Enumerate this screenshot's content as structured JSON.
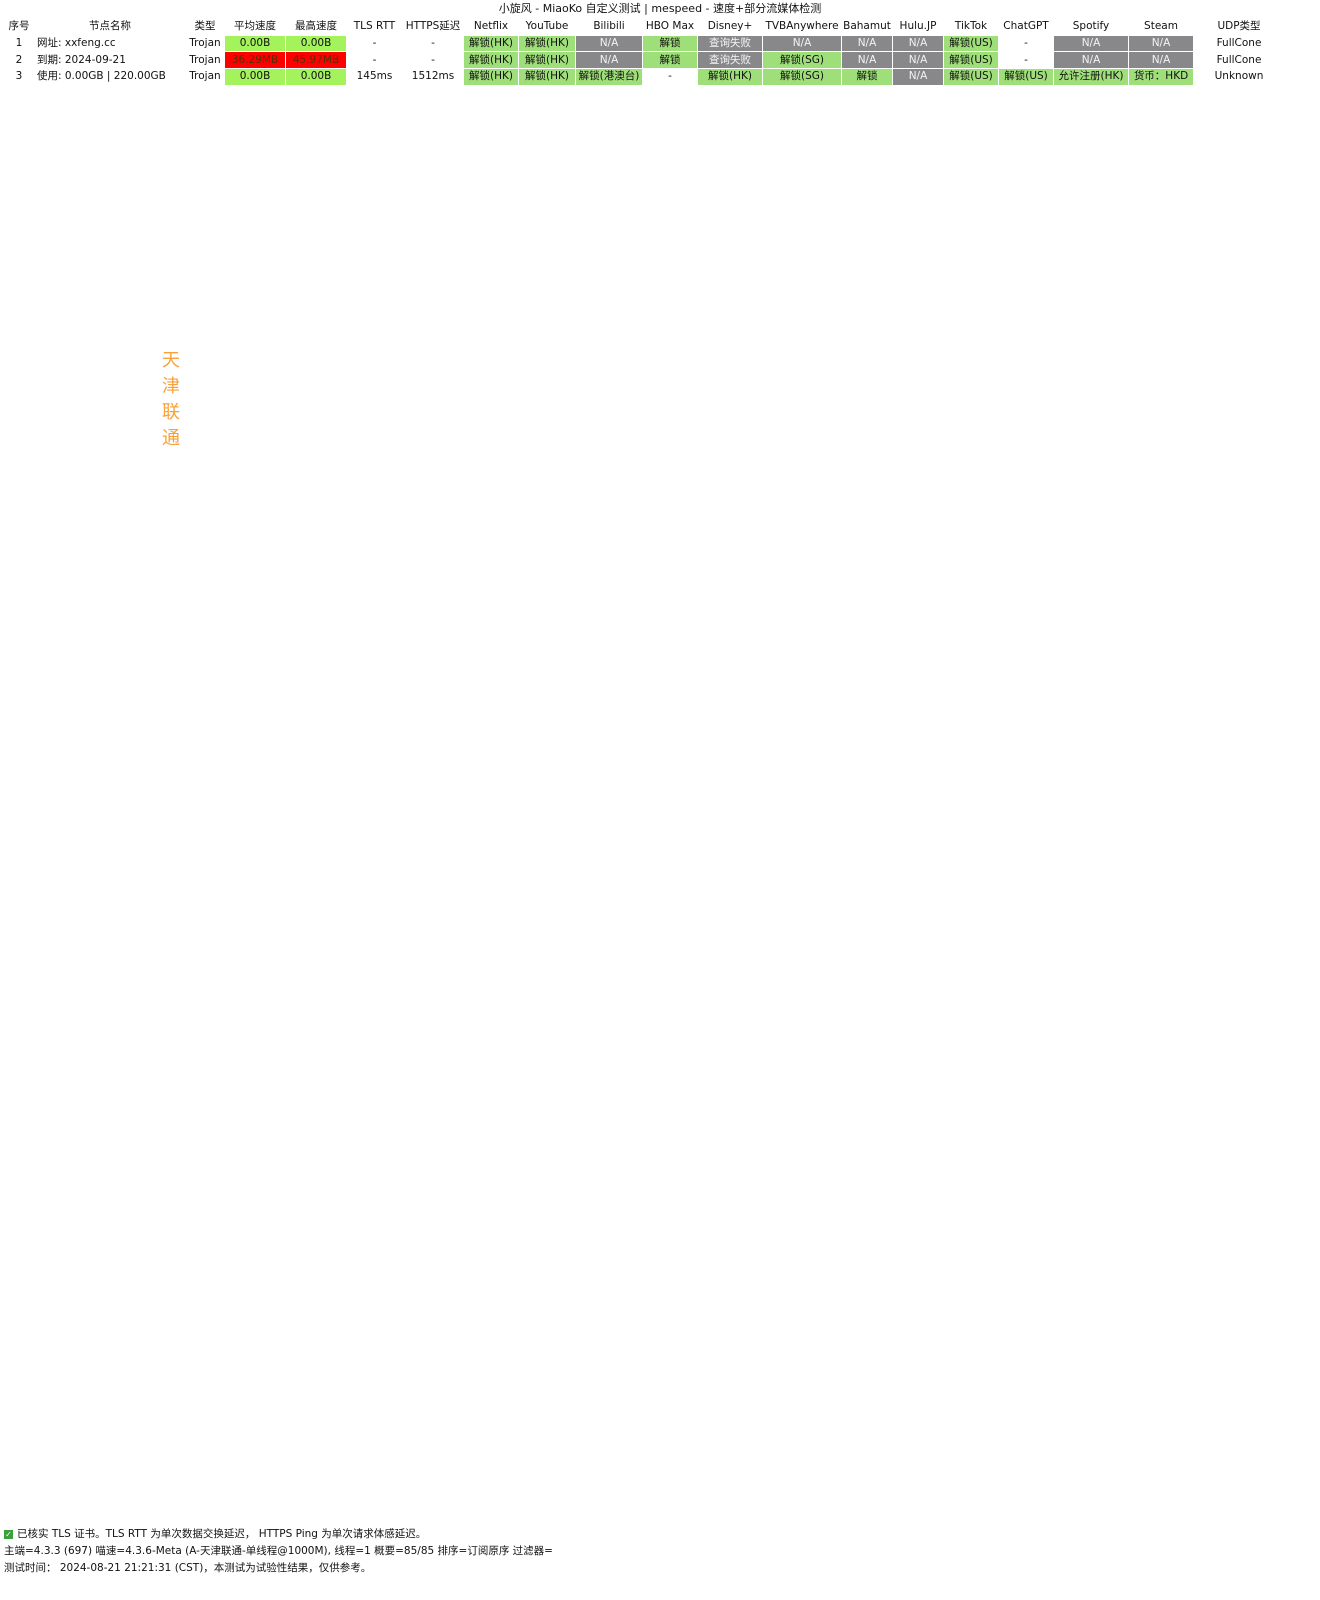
{
  "title": "小旋风 - MiaoKo 自定义测试 | mespeed - 速度+部分流媒体检测",
  "headers": [
    "序号",
    "节点名称",
    "类型",
    "平均速度",
    "最高速度",
    "TLS RTT",
    "HTTPS延迟",
    "Netflix",
    "YouTube",
    "Bilibili",
    "HBO Max",
    "Disney+",
    "TVBAnywhere",
    "Bahamut",
    "Hulu.JP",
    "TikTok",
    "ChatGPT",
    "Spotify",
    "Steam",
    "UDP类型"
  ],
  "watermark": "天津联通",
  "rows": [
    {
      "i": "1",
      "n": "网址: xxfeng.cc",
      "t": "Trojan",
      "a": [
        "0.00B",
        "lg"
      ],
      "m": [
        "0.00B",
        "lg"
      ],
      "tls": "-",
      "https": "-",
      "nf": [
        "解锁(HK)",
        "g"
      ],
      "yt": [
        "解锁(HK)",
        "g"
      ],
      "bb": [
        "N/A",
        "x"
      ],
      "hbo": [
        "解锁",
        "g"
      ],
      "dis": [
        "查询失败",
        "x"
      ],
      "tvb": [
        "N/A",
        "x"
      ],
      "bah": [
        "N/A",
        "x"
      ],
      "hulu": [
        "N/A",
        "x"
      ],
      "tt": [
        "解锁(US)",
        "g"
      ],
      "gpt": [
        "-",
        "w"
      ],
      "sp": [
        "N/A",
        "x"
      ],
      "st": [
        "N/A",
        "x"
      ],
      "udp": "FullCone"
    },
    {
      "i": "2",
      "n": "到期: 2024-09-21",
      "t": "Trojan",
      "a": [
        "36.29MB",
        "sr"
      ],
      "m": [
        "45.97MB",
        "sr"
      ],
      "tls": "-",
      "https": "-",
      "nf": [
        "解锁(HK)",
        "g"
      ],
      "yt": [
        "解锁(HK)",
        "g"
      ],
      "bb": [
        "N/A",
        "x"
      ],
      "hbo": [
        "解锁",
        "g"
      ],
      "dis": [
        "查询失败",
        "x"
      ],
      "tvb": [
        "解锁(SG)",
        "g"
      ],
      "bah": [
        "N/A",
        "x"
      ],
      "hulu": [
        "N/A",
        "x"
      ],
      "tt": [
        "解锁(US)",
        "g"
      ],
      "gpt": [
        "-",
        "w"
      ],
      "sp": [
        "N/A",
        "x"
      ],
      "st": [
        "N/A",
        "x"
      ],
      "udp": "FullCone"
    },
    {
      "i": "3",
      "n": "使用: 0.00GB | 220.00GB",
      "t": "Trojan",
      "a": [
        "0.00B",
        "lg"
      ],
      "m": [
        "0.00B",
        "lg"
      ],
      "tls": "145ms",
      "https": "1512ms",
      "nf": [
        "解锁(HK)",
        "g"
      ],
      "yt": [
        "解锁(HK)",
        "g"
      ],
      "bb": [
        "解锁(港澳台)",
        "g"
      ],
      "hbo": [
        "-",
        "w"
      ],
      "dis": [
        "解锁(HK)",
        "g"
      ],
      "tvb": [
        "解锁(SG)",
        "g"
      ],
      "bah": [
        "解锁",
        "g"
      ],
      "hulu": [
        "N/A",
        "x"
      ],
      "tt": [
        "解锁(US)",
        "g"
      ],
      "gpt": [
        "解锁(US)",
        "g"
      ],
      "sp": [
        "允许注册(HK)",
        "g"
      ],
      "st": [
        "货币：HKD",
        "g"
      ],
      "udp": "Unknown"
    }
  ],
  "footer": {
    "line1": "已核实 TLS 证书。TLS RTT 为单次数据交换延迟， HTTPS Ping 为单次请求体感延迟。",
    "line2": "主端=4.3.3 (697) 喵速=4.3.6-Meta (A-天津联通-单线程@1000M), 线程=1 概要=85/85 排序=订阅原序 过滤器=",
    "line3": "测试时间： 2024-08-21 21:21:31 (CST)，本测试为试验性结果，仅供参考。"
  }
}
